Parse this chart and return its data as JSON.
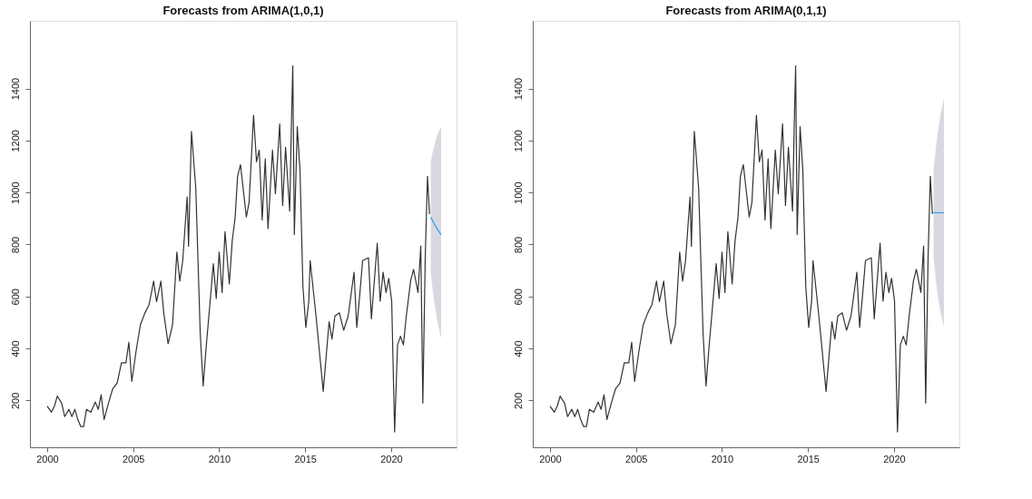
{
  "chart_data": [
    {
      "type": "line",
      "title": "Forecasts from ARIMA(1,0,1)",
      "xlim": [
        1999.0,
        2023.8
      ],
      "ylim": [
        20,
        1660
      ],
      "xticks": [
        2000,
        2005,
        2010,
        2015,
        2020
      ],
      "yticks": [
        200,
        400,
        600,
        800,
        1000,
        1200,
        1400
      ],
      "grid": false,
      "series": [
        {
          "color": "#333333",
          "x": [
            2000.0,
            2000.25,
            2000.42,
            2000.59,
            2000.85,
            2001.02,
            2001.27,
            2001.44,
            2001.61,
            2001.78,
            2001.95,
            2002.12,
            2002.29,
            2002.54,
            2002.8,
            2002.97,
            2003.14,
            2003.31,
            2003.56,
            2003.81,
            2004.07,
            2004.32,
            2004.58,
            2004.75,
            2004.92,
            2005.17,
            2005.42,
            2005.68,
            2005.93,
            2006.19,
            2006.36,
            2006.61,
            2006.78,
            2007.03,
            2007.29,
            2007.54,
            2007.71,
            2007.88,
            2008.14,
            2008.22,
            2008.39,
            2008.64,
            2008.9,
            2009.07,
            2009.24,
            2009.49,
            2009.66,
            2009.83,
            2010.0,
            2010.17,
            2010.34,
            2010.59,
            2010.76,
            2010.93,
            2011.07,
            2011.24,
            2011.58,
            2011.74,
            2012.0,
            2012.17,
            2012.33,
            2012.5,
            2012.68,
            2012.84,
            2013.1,
            2013.27,
            2013.52,
            2013.69,
            2013.86,
            2014.1,
            2014.2,
            2014.28,
            2014.37,
            2014.54,
            2014.7,
            2014.87,
            2015.04,
            2015.21,
            2015.29,
            2015.63,
            2016.05,
            2016.39,
            2016.56,
            2016.73,
            2016.99,
            2017.24,
            2017.5,
            2017.84,
            2018.0,
            2018.17,
            2018.34,
            2018.68,
            2018.85,
            2019.19,
            2019.36,
            2019.53,
            2019.7,
            2019.86,
            2020.03,
            2020.2,
            2020.37,
            2020.54,
            2020.71,
            2020.88,
            2021.13,
            2021.3,
            2021.56,
            2021.72,
            2021.84,
            2021.98,
            2022.11,
            2022.23
          ],
          "values": [
            178,
            155,
            178,
            217,
            189,
            138,
            166,
            138,
            166,
            127,
            100,
            100,
            166,
            155,
            194,
            166,
            222,
            127,
            189,
            245,
            267,
            345,
            345,
            424,
            273,
            390,
            491,
            536,
            569,
            659,
            580,
            659,
            536,
            418,
            491,
            771,
            659,
            737,
            983,
            793,
            1235,
            1017,
            457,
            256,
            402,
            592,
            726,
            592,
            771,
            615,
            849,
            648,
            815,
            905,
            1062,
            1107,
            906,
            962,
            1297,
            1118,
            1163,
            894,
            1129,
            861,
            1163,
            995,
            1264,
            950,
            1174,
            928,
            1264,
            1487,
            838,
            1253,
            1084,
            637,
            481,
            582,
            738,
            525,
            235,
            503,
            436,
            525,
            537,
            470,
            525,
            693,
            481,
            604,
            738,
            749,
            514,
            805,
            582,
            693,
            615,
            670,
            582,
            79,
            414,
            447,
            414,
            525,
            660,
            704,
            615,
            794,
            190,
            749,
            1062,
            917
          ]
        },
        {
          "color": "#2f9ee0",
          "x": [
            2022.3,
            2022.5,
            2022.7,
            2022.9
          ],
          "values": [
            905,
            880,
            858,
            838
          ],
          "lower": [
            690,
            580,
            500,
            438
          ],
          "upper": [
            1120,
            1180,
            1225,
            1253
          ]
        }
      ]
    },
    {
      "type": "line",
      "title": "Forecasts from ARIMA(0,1,1)",
      "xlim": [
        1999.0,
        2023.8
      ],
      "ylim": [
        20,
        1660
      ],
      "xticks": [
        2000,
        2005,
        2010,
        2015,
        2020
      ],
      "yticks": [
        200,
        400,
        600,
        800,
        1000,
        1200,
        1400
      ],
      "grid": false,
      "series": [
        {
          "color": "#333333",
          "x": [
            2000.0,
            2000.25,
            2000.42,
            2000.59,
            2000.85,
            2001.02,
            2001.27,
            2001.44,
            2001.61,
            2001.78,
            2001.95,
            2002.12,
            2002.29,
            2002.54,
            2002.8,
            2002.97,
            2003.14,
            2003.31,
            2003.56,
            2003.81,
            2004.07,
            2004.32,
            2004.58,
            2004.75,
            2004.92,
            2005.17,
            2005.42,
            2005.68,
            2005.93,
            2006.19,
            2006.36,
            2006.61,
            2006.78,
            2007.03,
            2007.29,
            2007.54,
            2007.71,
            2007.88,
            2008.14,
            2008.22,
            2008.39,
            2008.64,
            2008.9,
            2009.07,
            2009.24,
            2009.49,
            2009.66,
            2009.83,
            2010.0,
            2010.17,
            2010.34,
            2010.59,
            2010.76,
            2010.93,
            2011.07,
            2011.24,
            2011.58,
            2011.74,
            2012.0,
            2012.17,
            2012.33,
            2012.5,
            2012.68,
            2012.84,
            2013.1,
            2013.27,
            2013.52,
            2013.69,
            2013.86,
            2014.1,
            2014.2,
            2014.28,
            2014.37,
            2014.54,
            2014.7,
            2014.87,
            2015.04,
            2015.21,
            2015.29,
            2015.63,
            2016.05,
            2016.39,
            2016.56,
            2016.73,
            2016.99,
            2017.24,
            2017.5,
            2017.84,
            2018.0,
            2018.17,
            2018.34,
            2018.68,
            2018.85,
            2019.19,
            2019.36,
            2019.53,
            2019.7,
            2019.86,
            2020.03,
            2020.2,
            2020.37,
            2020.54,
            2020.71,
            2020.88,
            2021.13,
            2021.3,
            2021.56,
            2021.72,
            2021.84,
            2021.98,
            2022.11,
            2022.23
          ],
          "values": [
            178,
            155,
            178,
            217,
            189,
            138,
            166,
            138,
            166,
            127,
            100,
            100,
            166,
            155,
            194,
            166,
            222,
            127,
            189,
            245,
            267,
            345,
            345,
            424,
            273,
            390,
            491,
            536,
            569,
            659,
            580,
            659,
            536,
            418,
            491,
            771,
            659,
            737,
            983,
            793,
            1235,
            1017,
            457,
            256,
            402,
            592,
            726,
            592,
            771,
            615,
            849,
            648,
            815,
            905,
            1062,
            1107,
            906,
            962,
            1297,
            1118,
            1163,
            894,
            1129,
            861,
            1163,
            995,
            1264,
            950,
            1174,
            928,
            1264,
            1487,
            838,
            1253,
            1084,
            637,
            481,
            582,
            738,
            525,
            235,
            503,
            436,
            525,
            537,
            470,
            525,
            693,
            481,
            604,
            738,
            749,
            514,
            805,
            582,
            693,
            615,
            670,
            582,
            79,
            414,
            447,
            414,
            525,
            660,
            704,
            615,
            794,
            190,
            749,
            1062,
            917
          ]
        },
        {
          "color": "#2f9ee0",
          "x": [
            2022.3,
            2022.5,
            2022.7,
            2022.9
          ],
          "values": [
            922,
            922,
            922,
            922
          ],
          "lower": [
            750,
            620,
            540,
            483
          ],
          "upper": [
            1090,
            1210,
            1300,
            1364
          ]
        }
      ]
    }
  ]
}
